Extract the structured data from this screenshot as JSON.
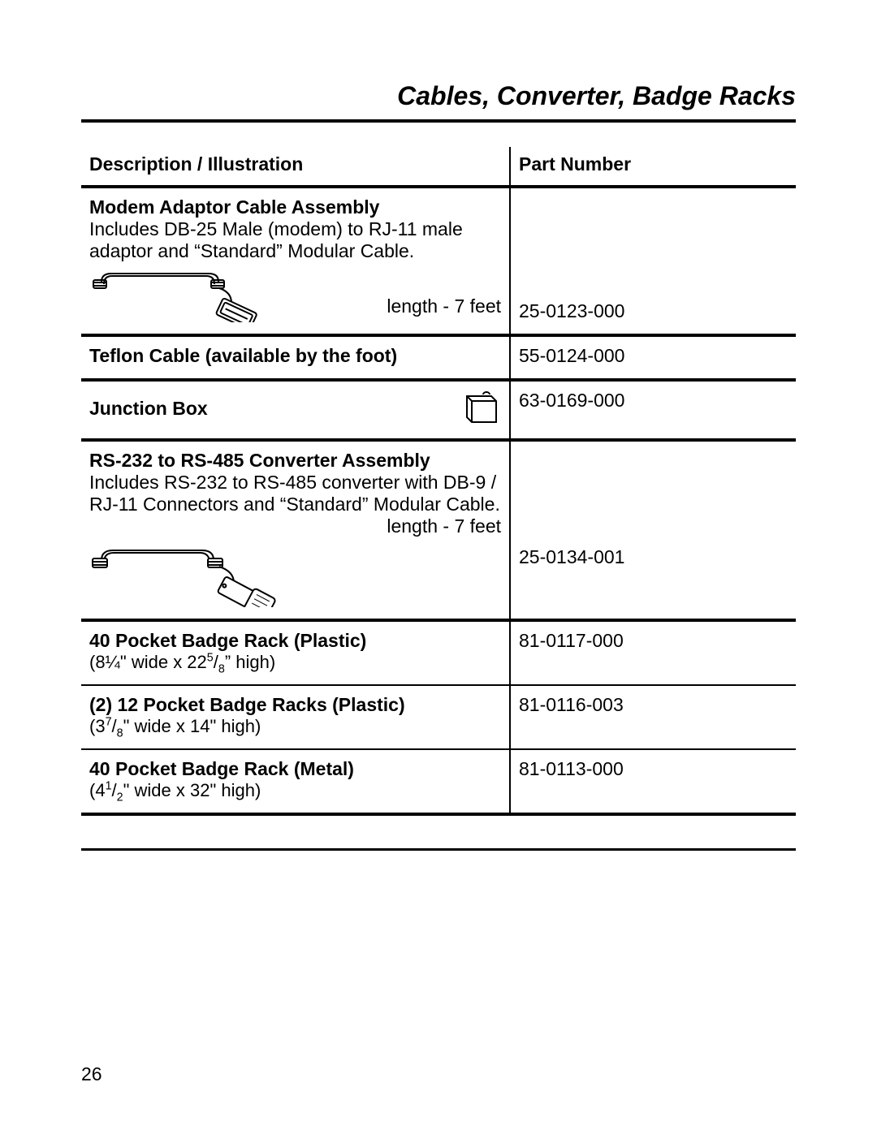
{
  "title": "Cables, Converter, Badge Racks",
  "headers": {
    "description": "Description / Illustration",
    "part_number": "Part Number"
  },
  "rows": [
    {
      "kind": "modem",
      "heading": "Modem Adaptor Cable Assembly",
      "detail": "Includes DB-25 Male (modem) to RJ-11 male adaptor and “Standard” Modular Cable.",
      "length_label": "length - 7 feet",
      "part": "25-0123-000"
    },
    {
      "kind": "simple",
      "heading": "Teflon Cable (available by the foot)",
      "part": "55-0124-000"
    },
    {
      "kind": "jbox",
      "heading": "Junction Box",
      "part": "63-0169-000"
    },
    {
      "kind": "converter",
      "heading": "RS-232 to RS-485 Converter Assembly",
      "detail": "Includes RS-232 to RS-485 converter with DB-9 / RJ-11 Connectors and “Standard” Modular Cable.",
      "length_label": "length - 7 feet",
      "part": "25-0134-001"
    },
    {
      "kind": "dims",
      "heading": "40 Pocket Badge Rack (Plastic)",
      "dims_html": "(8¼\" wide x 22<sup>5</sup>/<sub>8</sub>” high)",
      "part": "81-0117-000"
    },
    {
      "kind": "dims",
      "heading": "(2) 12 Pocket Badge Racks (Plastic)",
      "dims_html": "(3<sup>7</sup>/<sub>8</sub>\" wide x 14\" high)",
      "part": "81-0116-003"
    },
    {
      "kind": "dims",
      "heading": "40 Pocket Badge Rack (Metal)",
      "dims_html": "(4<sup>1</sup>/<sub>2</sub>\" wide x 32\" high)",
      "part": "81-0113-000"
    }
  ],
  "page_number": "26",
  "style": {
    "title_fontsize": 32,
    "body_fontsize": 23,
    "heavy_rule": "#000000",
    "heavy_rule_width": 4,
    "thin_rule_width": 2,
    "background": "#ffffff",
    "text_color": "#000000"
  }
}
